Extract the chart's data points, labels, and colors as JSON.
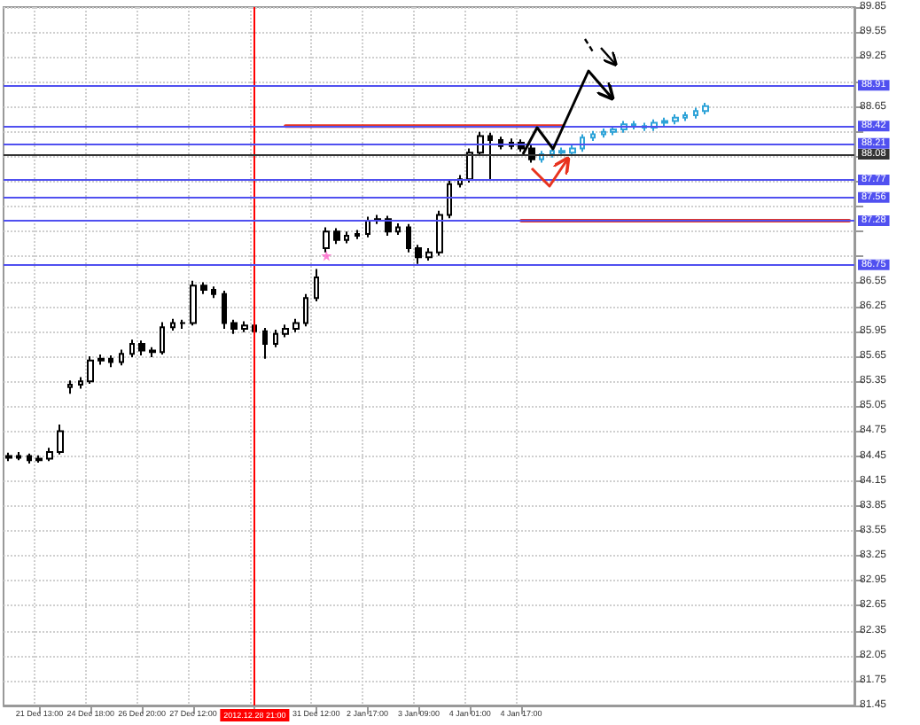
{
  "chart_data": {
    "type": "candlestick",
    "categories": [
      null,
      null,
      null,
      "21 Dec 13:00",
      null,
      null,
      null,
      null,
      "24 Dec 18:00",
      null,
      null,
      null,
      null,
      "26 Dec 20:00",
      null,
      null,
      null,
      null,
      "27 Dec 12:00",
      null,
      null,
      null,
      null,
      null,
      "2012.12.28 21:00",
      null,
      null,
      null,
      null,
      null,
      "31 Dec 12:00",
      null,
      null,
      null,
      null,
      "2 Jan 17:00",
      null,
      null,
      null,
      null,
      "3 Jan 09:00",
      null,
      null,
      null,
      null,
      "4 Jan 01:00",
      null,
      null,
      null,
      null,
      "4 Jan 17:00",
      null,
      null,
      null,
      null,
      null,
      null,
      null,
      null,
      null,
      null,
      null,
      null,
      null,
      null,
      null,
      null,
      null,
      null,
      null,
      null,
      null,
      null,
      null,
      null,
      null,
      null,
      null,
      null,
      null,
      null,
      null,
      null
    ],
    "series": [
      {
        "color": "#000000",
        "ohlc": [
          [
            84.45,
            84.49,
            84.39,
            84.43
          ],
          [
            84.43,
            84.5,
            84.4,
            84.45
          ],
          [
            84.45,
            84.48,
            84.36,
            84.4
          ],
          [
            84.4,
            84.46,
            84.37,
            84.42
          ],
          [
            84.42,
            84.55,
            84.39,
            84.5
          ],
          [
            84.5,
            84.83,
            84.47,
            84.75
          ],
          [
            85.28,
            85.36,
            85.2,
            85.31
          ],
          [
            85.31,
            85.4,
            85.26,
            85.35
          ],
          [
            85.35,
            85.65,
            85.32,
            85.6
          ],
          [
            85.6,
            85.67,
            85.55,
            85.62
          ],
          [
            85.62,
            85.66,
            85.52,
            85.58
          ],
          [
            85.58,
            85.73,
            85.54,
            85.68
          ],
          [
            85.68,
            85.85,
            85.64,
            85.8
          ],
          [
            85.8,
            85.84,
            85.66,
            85.72
          ],
          [
            85.72,
            85.76,
            85.64,
            85.7
          ],
          [
            85.7,
            86.06,
            85.67,
            86.0
          ],
          [
            86.0,
            86.1,
            85.96,
            86.05
          ],
          [
            86.05,
            86.09,
            85.98,
            86.05
          ],
          [
            86.05,
            86.56,
            86.02,
            86.5
          ],
          [
            86.5,
            86.54,
            86.4,
            86.45
          ],
          [
            86.45,
            86.49,
            86.35,
            86.4
          ],
          [
            86.4,
            86.44,
            85.98,
            86.05
          ],
          [
            86.05,
            86.09,
            85.92,
            85.98
          ],
          [
            85.98,
            86.07,
            85.94,
            86.02
          ],
          [
            86.02,
            86.06,
            85.9,
            85.95
          ],
          [
            85.95,
            85.99,
            85.62,
            85.8
          ],
          [
            85.8,
            85.97,
            85.76,
            85.92
          ],
          [
            85.92,
            86.03,
            85.88,
            85.98
          ],
          [
            85.98,
            86.1,
            85.94,
            86.05
          ],
          [
            86.05,
            86.4,
            86.01,
            86.35
          ],
          [
            86.35,
            86.7,
            86.31,
            86.6
          ],
          [
            86.95,
            87.2,
            86.9,
            87.15
          ],
          [
            87.15,
            87.19,
            87.0,
            87.05
          ],
          [
            87.05,
            87.15,
            87.01,
            87.1
          ],
          [
            87.1,
            87.17,
            87.06,
            87.12
          ],
          [
            87.12,
            87.33,
            87.08,
            87.28
          ],
          [
            87.28,
            87.35,
            87.24,
            87.3
          ],
          [
            87.3,
            87.34,
            87.1,
            87.15
          ],
          [
            87.15,
            87.25,
            87.11,
            87.2
          ],
          [
            87.2,
            87.24,
            86.9,
            86.95
          ],
          [
            86.95,
            86.99,
            86.76,
            86.84
          ],
          [
            86.84,
            86.95,
            86.8,
            86.9
          ],
          [
            86.9,
            87.4,
            86.86,
            87.35
          ],
          [
            87.35,
            87.77,
            87.31,
            87.72
          ],
          [
            87.72,
            87.83,
            87.68,
            87.78
          ],
          [
            87.78,
            88.15,
            87.74,
            88.1
          ],
          [
            88.1,
            88.35,
            88.06,
            88.3
          ],
          [
            88.3,
            88.34,
            87.78,
            88.25
          ],
          [
            88.25,
            88.29,
            88.14,
            88.18
          ],
          [
            88.18,
            88.27,
            88.14,
            88.22
          ],
          [
            88.22,
            88.26,
            88.11,
            88.15
          ],
          [
            88.15,
            88.19,
            87.98,
            88.02
          ],
          null,
          null,
          null,
          null,
          null,
          null,
          null,
          null,
          null,
          null,
          null,
          null,
          null,
          null,
          null,
          null,
          null,
          null,
          null,
          null,
          null,
          null,
          null,
          null,
          null,
          null,
          null,
          null,
          null,
          null,
          null
        ]
      },
      {
        "color": "#2ea3d8",
        "ohlc": [
          null,
          null,
          null,
          null,
          null,
          null,
          null,
          null,
          null,
          null,
          null,
          null,
          null,
          null,
          null,
          null,
          null,
          null,
          null,
          null,
          null,
          null,
          null,
          null,
          null,
          null,
          null,
          null,
          null,
          null,
          null,
          null,
          null,
          null,
          null,
          null,
          null,
          null,
          null,
          null,
          null,
          null,
          null,
          null,
          null,
          null,
          null,
          null,
          null,
          null,
          null,
          null,
          [
            88.02,
            88.12,
            87.98,
            88.08
          ],
          [
            88.08,
            88.16,
            88.04,
            88.12
          ],
          [
            88.12,
            88.16,
            88.06,
            88.1
          ],
          [
            88.1,
            88.19,
            88.06,
            88.15
          ],
          [
            88.15,
            88.32,
            88.11,
            88.28
          ],
          [
            88.28,
            88.36,
            88.24,
            88.32
          ],
          [
            88.32,
            88.39,
            88.28,
            88.35
          ],
          [
            88.35,
            88.42,
            88.31,
            88.38
          ],
          [
            88.38,
            88.48,
            88.34,
            88.44
          ],
          [
            88.44,
            88.48,
            88.38,
            88.42
          ],
          [
            88.42,
            88.46,
            88.36,
            88.4
          ],
          [
            88.4,
            88.5,
            88.36,
            88.46
          ],
          [
            88.46,
            88.52,
            88.42,
            88.48
          ],
          [
            88.48,
            88.56,
            88.44,
            88.52
          ],
          [
            88.52,
            88.59,
            88.48,
            88.55
          ],
          [
            88.55,
            88.64,
            88.51,
            88.6
          ],
          [
            88.6,
            88.7,
            88.56,
            88.66
          ],
          null,
          null,
          null,
          null,
          null,
          null,
          null,
          null,
          null,
          null,
          null,
          null,
          null,
          null
        ]
      },
      {
        "type": "line",
        "color": "#e8321e",
        "values": [
          null,
          null,
          null,
          null,
          null,
          null,
          null,
          null,
          null,
          null,
          null,
          null,
          null,
          null,
          null,
          null,
          null,
          null,
          null,
          null,
          null,
          null,
          null,
          null,
          null,
          null,
          null,
          88.42,
          88.42,
          88.42,
          88.42,
          88.42,
          88.42,
          88.42,
          88.42,
          88.42,
          88.42,
          88.42,
          88.42,
          88.42,
          88.42,
          88.42,
          88.42,
          88.42,
          88.42,
          88.42,
          88.42,
          88.42,
          88.42,
          88.42,
          88.42,
          88.42,
          88.42,
          88.42,
          88.42,
          null,
          null,
          null,
          null,
          null,
          null,
          null,
          null,
          null,
          null,
          null,
          null,
          null,
          null,
          null,
          null,
          null,
          null,
          null,
          null,
          null,
          null,
          null,
          null,
          null,
          null,
          null,
          null
        ]
      },
      {
        "type": "line",
        "color": "#e8321e",
        "values": [
          null,
          null,
          null,
          null,
          null,
          null,
          null,
          null,
          null,
          null,
          null,
          null,
          null,
          null,
          null,
          null,
          null,
          null,
          null,
          null,
          null,
          null,
          null,
          null,
          null,
          null,
          null,
          null,
          null,
          null,
          null,
          null,
          null,
          null,
          null,
          null,
          null,
          null,
          null,
          null,
          null,
          null,
          null,
          null,
          null,
          null,
          null,
          null,
          null,
          null,
          87.28,
          87.28,
          87.28,
          87.28,
          87.28,
          87.28,
          87.28,
          87.28,
          87.28,
          87.28,
          87.28,
          87.28,
          87.28,
          87.28,
          87.28,
          87.28,
          87.28,
          87.28,
          87.28,
          87.28,
          87.28,
          87.28,
          87.28,
          87.28,
          87.28,
          87.28,
          87.28,
          87.28,
          87.28,
          87.28,
          87.28,
          87.28,
          87.28
        ]
      },
      {
        "type": "scatter",
        "color": "#ff66cc",
        "marker": "star",
        "values": [
          null,
          null,
          null,
          null,
          null,
          null,
          null,
          null,
          null,
          null,
          null,
          null,
          null,
          null,
          null,
          null,
          null,
          null,
          null,
          null,
          null,
          null,
          null,
          null,
          null,
          null,
          null,
          null,
          null,
          null,
          null,
          86.86,
          null,
          null,
          null,
          null,
          null,
          null,
          null,
          null,
          null,
          null,
          null,
          null,
          null,
          null,
          null,
          null,
          null,
          null,
          null,
          null,
          null,
          null,
          null,
          null,
          null,
          null,
          null,
          null,
          null,
          null,
          null,
          null,
          null,
          null,
          null,
          null,
          null,
          null,
          null,
          null,
          null,
          null,
          null,
          null,
          null,
          null,
          null,
          null,
          null,
          null,
          null
        ]
      }
    ],
    "ylim": [
      81.45,
      89.85
    ],
    "yticks": [
      81.45,
      81.75,
      82.05,
      82.35,
      82.65,
      82.95,
      83.25,
      83.55,
      83.85,
      84.15,
      84.45,
      84.75,
      85.05,
      85.35,
      85.65,
      85.95,
      86.25,
      86.55,
      {
        "value": 86.85,
        "label": null
      },
      {
        "value": 87.15,
        "label": null
      },
      {
        "value": 87.45,
        "label": null
      },
      {
        "value": 87.75,
        "label": null
      },
      {
        "value": 88.05,
        "label": null
      },
      {
        "value": 88.35,
        "label": null
      },
      88.65,
      {
        "value": 88.95,
        "label": null
      },
      89.25,
      89.55,
      89.85
    ],
    "ref_lines": [
      {
        "axis": "x",
        "value": "2012.12.28 21:00",
        "color": "#ff0000"
      },
      {
        "axis": "y",
        "value": 88.91,
        "label": "88.91",
        "color": "#5050f0"
      },
      {
        "axis": "y",
        "value": 88.42,
        "label": "88.42",
        "color": "#5050f0"
      },
      {
        "axis": "y",
        "value": 88.21,
        "label": "88.21",
        "color": "#5050f0"
      },
      {
        "axis": "y",
        "value": 88.08,
        "label": "88.08",
        "color": "#333333"
      },
      {
        "axis": "y",
        "value": 87.77,
        "label": "87.77",
        "color": "#5050f0"
      },
      {
        "axis": "y",
        "value": 87.56,
        "label": "87.56",
        "color": "#5050f0"
      },
      {
        "axis": "y",
        "value": 87.28,
        "label": "87.28",
        "color": "#5050f0"
      },
      {
        "axis": "y",
        "value": 86.75,
        "label": "86.75",
        "color": "#5050f0"
      }
    ],
    "grid": true
  }
}
